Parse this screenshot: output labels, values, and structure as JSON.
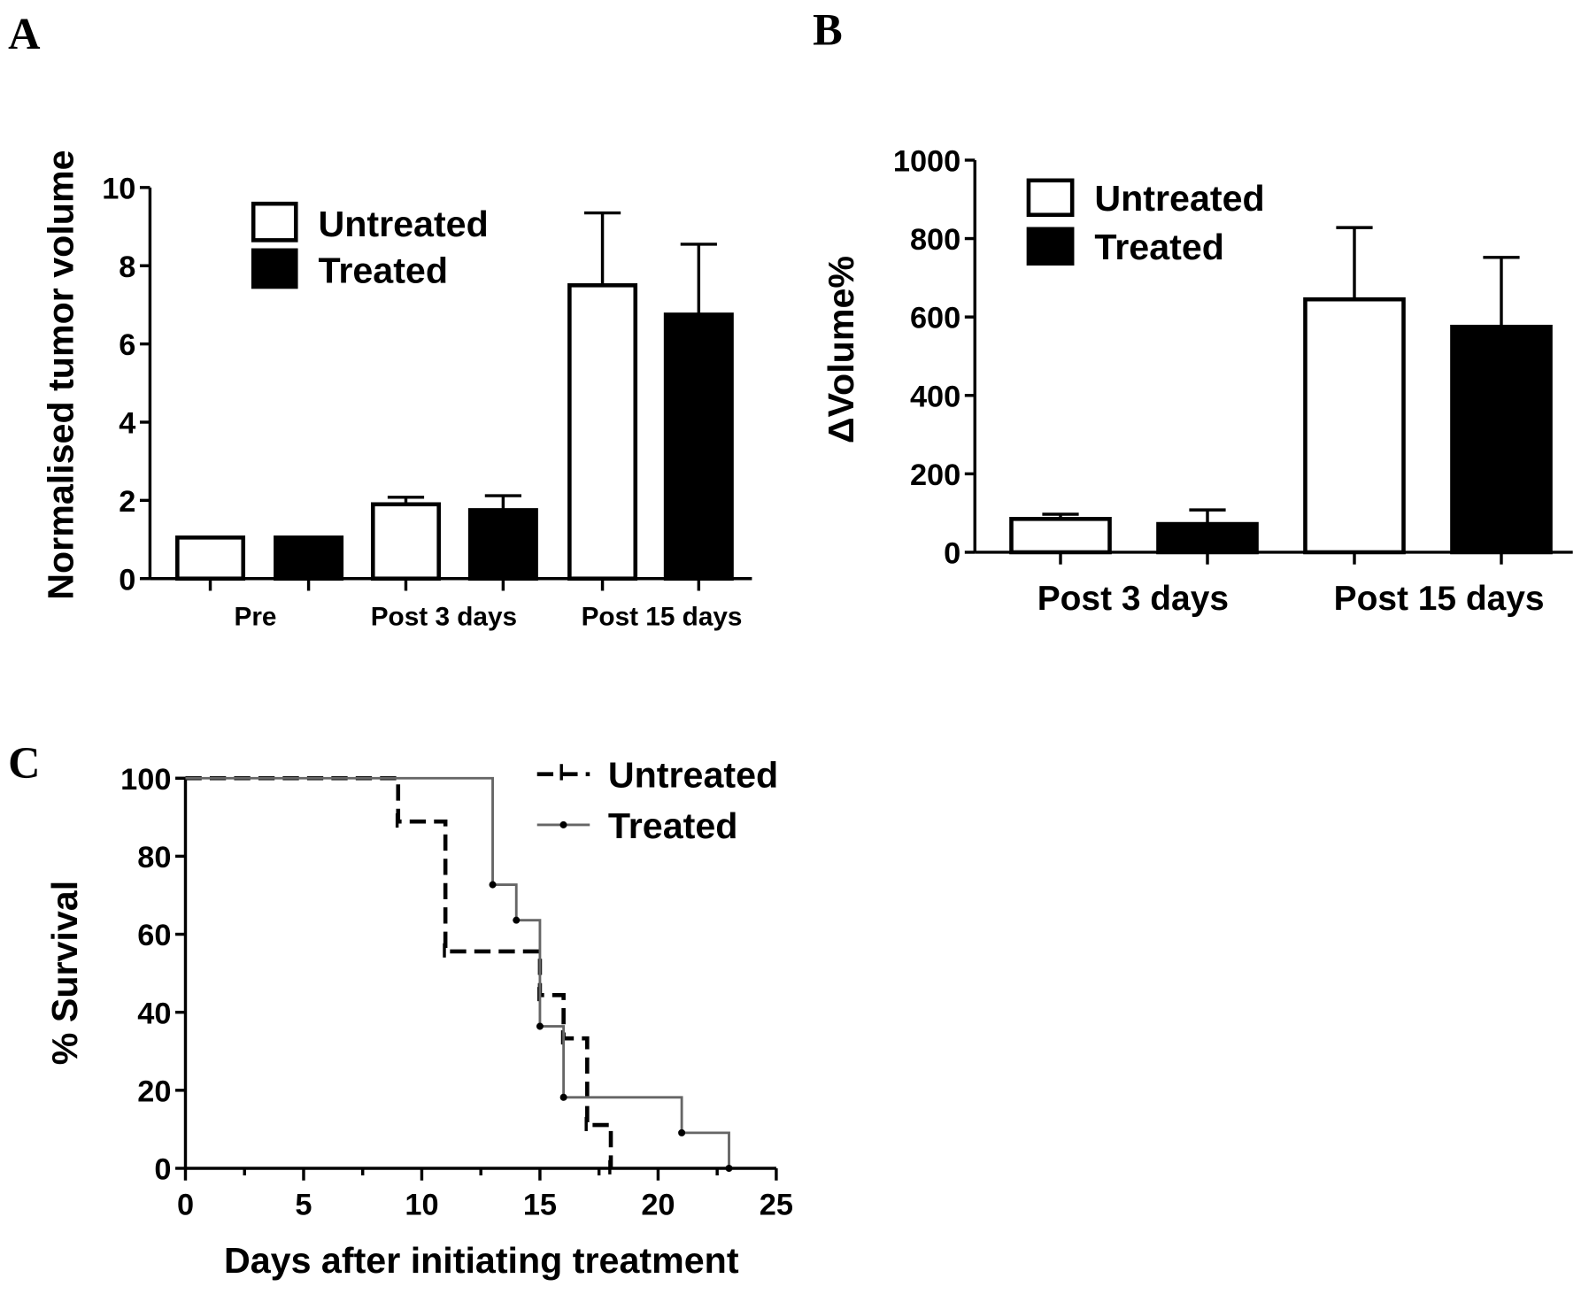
{
  "chart_data": [
    {
      "panel": "A",
      "type": "bar",
      "ylabel": "Normalised tumor volume",
      "xlabel": "",
      "ylim": [
        0,
        10
      ],
      "yticks": [
        "0",
        "2",
        "4",
        "6",
        "8",
        "10"
      ],
      "categories": [
        "Pre",
        "Post 3 days",
        "Post 15 days"
      ],
      "series": [
        {
          "name": "Untreated",
          "fill": "#ffffff",
          "values": [
            1.05,
            1.9,
            7.5
          ],
          "error_upper": [
            1.05,
            2.08,
            9.35
          ]
        },
        {
          "name": "Treated",
          "fill": "#000000",
          "values": [
            1.05,
            1.75,
            6.75
          ],
          "error_upper": [
            1.05,
            2.12,
            8.55
          ]
        }
      ],
      "legend": "top-center"
    },
    {
      "panel": "B",
      "type": "bar",
      "ylabel": "ΔVolume%",
      "xlabel": "",
      "ylim": [
        0,
        1000
      ],
      "yticks": [
        "0",
        "200",
        "400",
        "600",
        "800",
        "1000"
      ],
      "categories": [
        "Post 3 days",
        "Post 15 days"
      ],
      "series": [
        {
          "name": "Untreated",
          "fill": "#ffffff",
          "values": [
            85,
            645
          ],
          "error_upper": [
            97,
            828
          ]
        },
        {
          "name": "Treated",
          "fill": "#000000",
          "values": [
            72,
            575
          ],
          "error_upper": [
            108,
            752
          ]
        }
      ],
      "legend": "top-left"
    },
    {
      "panel": "C",
      "type": "line",
      "subtype": "kaplan-meier",
      "ylabel": "% Survival",
      "xlabel": "Days after initiating treatment",
      "xlim": [
        0,
        25
      ],
      "ylim": [
        0,
        100
      ],
      "xticks": [
        "0",
        "5",
        "10",
        "15",
        "20",
        "25"
      ],
      "yticks": [
        "0",
        "20",
        "40",
        "60",
        "80",
        "100"
      ],
      "series": [
        {
          "name": "Untreated",
          "style": "dashed",
          "color": "#000000",
          "x": [
            0,
            9,
            11,
            15,
            16,
            17,
            18
          ],
          "y": [
            100,
            88.9,
            55.6,
            44.4,
            33.3,
            11.1,
            0
          ]
        },
        {
          "name": "Treated",
          "style": "solid",
          "color": "#666666",
          "x": [
            0,
            13,
            14,
            15,
            16,
            21,
            23
          ],
          "y": [
            100,
            72.7,
            63.6,
            36.4,
            18.2,
            9.1,
            0
          ]
        }
      ],
      "legend": "top-right"
    }
  ]
}
